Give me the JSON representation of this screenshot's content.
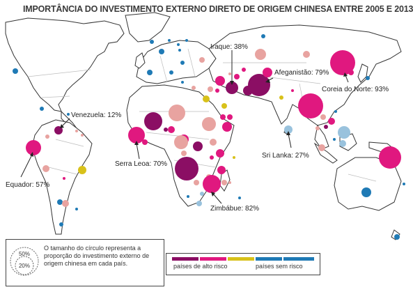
{
  "title": "IMPORTÂNCIA DO INVESTIMENTO EXTERNO DIRETO DE ORIGEM CHINESA ENTRE 2005 E 2013",
  "colors": {
    "ocean": "#ffffff",
    "land": "#ffffff",
    "border": "#bdbdbd",
    "coast": "#333333",
    "dark_purple": "#8b0e64",
    "magenta": "#e0187f",
    "pink": "#e8a3a0",
    "yellow": "#d8c11a",
    "light_blue": "#99c2dd",
    "blue": "#1f7ab5"
  },
  "labels": {
    "iraque": "Iraque: 38%",
    "afeganistao": "Afeganistão: 79%",
    "coreia": "Coreia do Norte: 93%",
    "venezuela": "Venezuela: 12%",
    "serra_leoa": "Serra Leoa: 70%",
    "sri_lanka": "Sri Lanka: 27%",
    "equador": "Equador: 57%",
    "zimbabue": "Zimbábue: 82%"
  },
  "legend": {
    "size_50": "50%",
    "size_20": "20%",
    "size_text": "O tamanho do círculo representa a proporção do investimento externo de origem chinesa em cada país.",
    "high_risk": "países de alto risco",
    "no_risk": "países sem risco",
    "scale_colors": [
      "#8b0e64",
      "#e0187f",
      "#d8c11a",
      "#1f7ab5"
    ]
  }
}
